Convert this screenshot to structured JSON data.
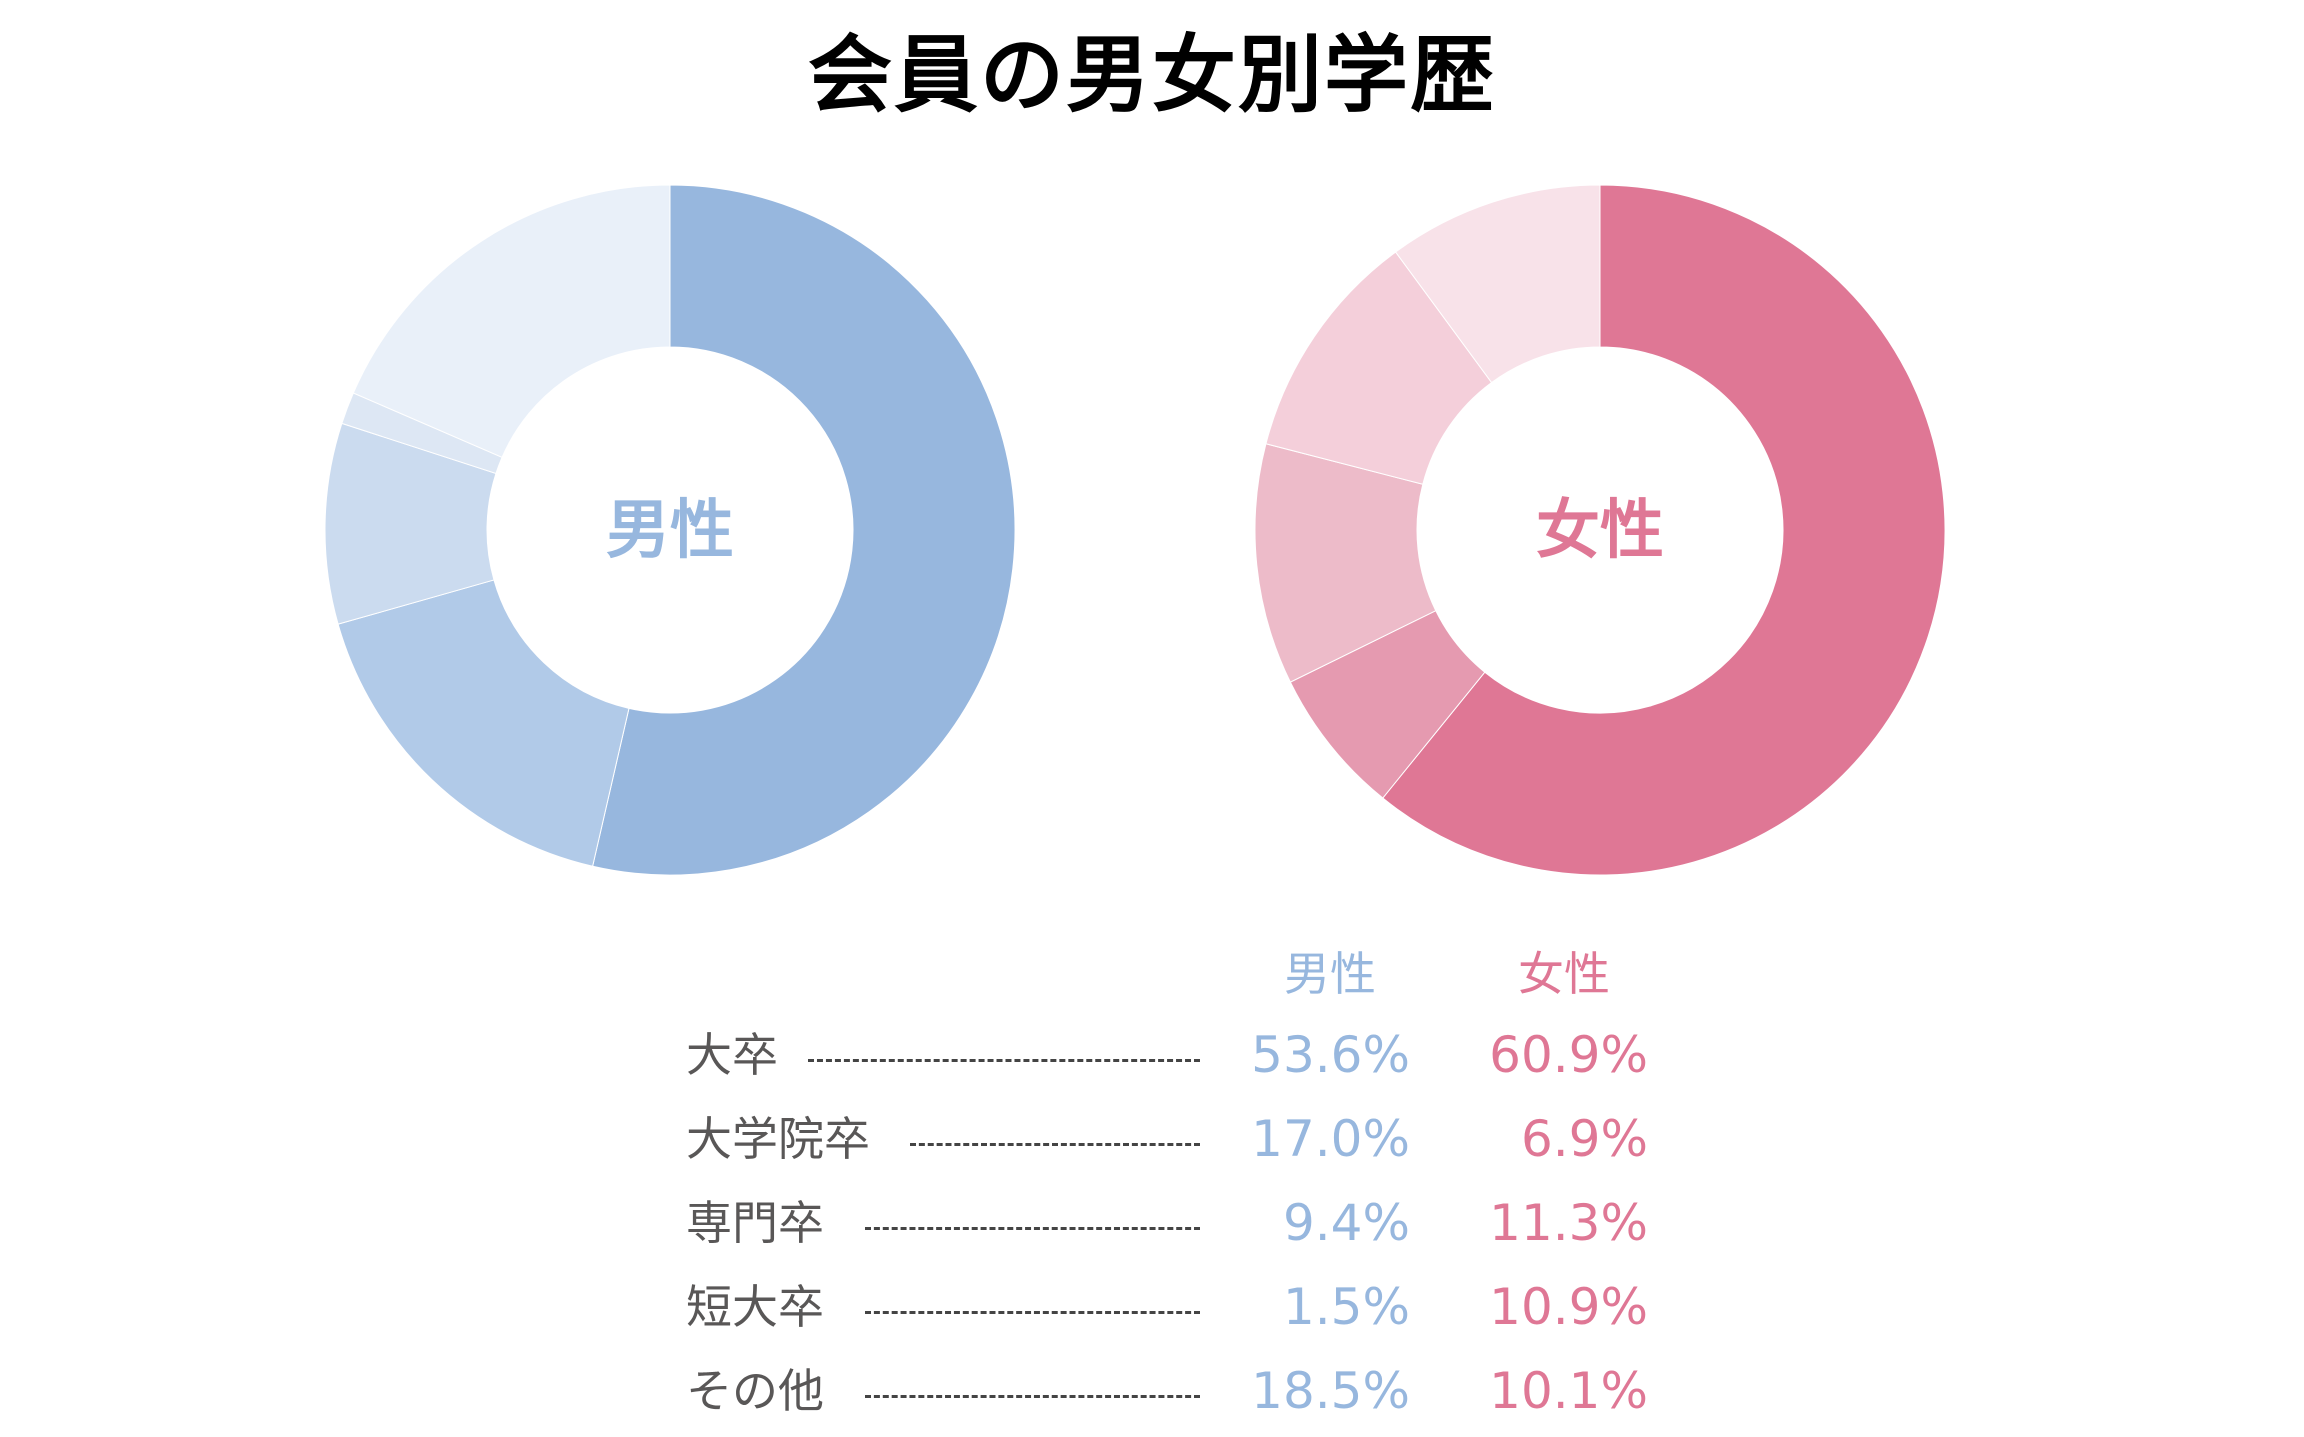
{
  "title": "会員の男女別学歴",
  "colors": {
    "male": [
      "#97b7de",
      "#b1cae8",
      "#cbdbef",
      "#dde7f4",
      "#e9f0f9"
    ],
    "female": [
      "#df7795",
      "#e59ab0",
      "#edbbc9",
      "#f4cfda",
      "#f8e2e9"
    ]
  },
  "chart_data": [
    {
      "type": "pie",
      "name": "男性",
      "center_label": "男性",
      "categories": [
        "大卒",
        "大学院卒",
        "専門卒",
        "短大卒",
        "その他"
      ],
      "values": [
        53.6,
        17.0,
        9.4,
        1.5,
        18.5
      ]
    },
    {
      "type": "pie",
      "name": "女性",
      "center_label": "女性",
      "categories": [
        "大卒",
        "大学院卒",
        "専門卒",
        "短大卒",
        "その他"
      ],
      "values": [
        60.9,
        6.9,
        11.3,
        10.9,
        10.1
      ]
    }
  ],
  "table": {
    "headers": [
      "男性",
      "女性"
    ],
    "rows": [
      {
        "label": "大卒",
        "male": "53.6%",
        "female": "60.9%"
      },
      {
        "label": "大学院卒",
        "male": "17.0%",
        "female": "6.9%"
      },
      {
        "label": "専門卒",
        "male": "9.4%",
        "female": "11.3%"
      },
      {
        "label": "短大卒",
        "male": "1.5%",
        "female": "10.9%"
      },
      {
        "label": "その他",
        "male": "18.5%",
        "female": "10.1%"
      }
    ]
  }
}
